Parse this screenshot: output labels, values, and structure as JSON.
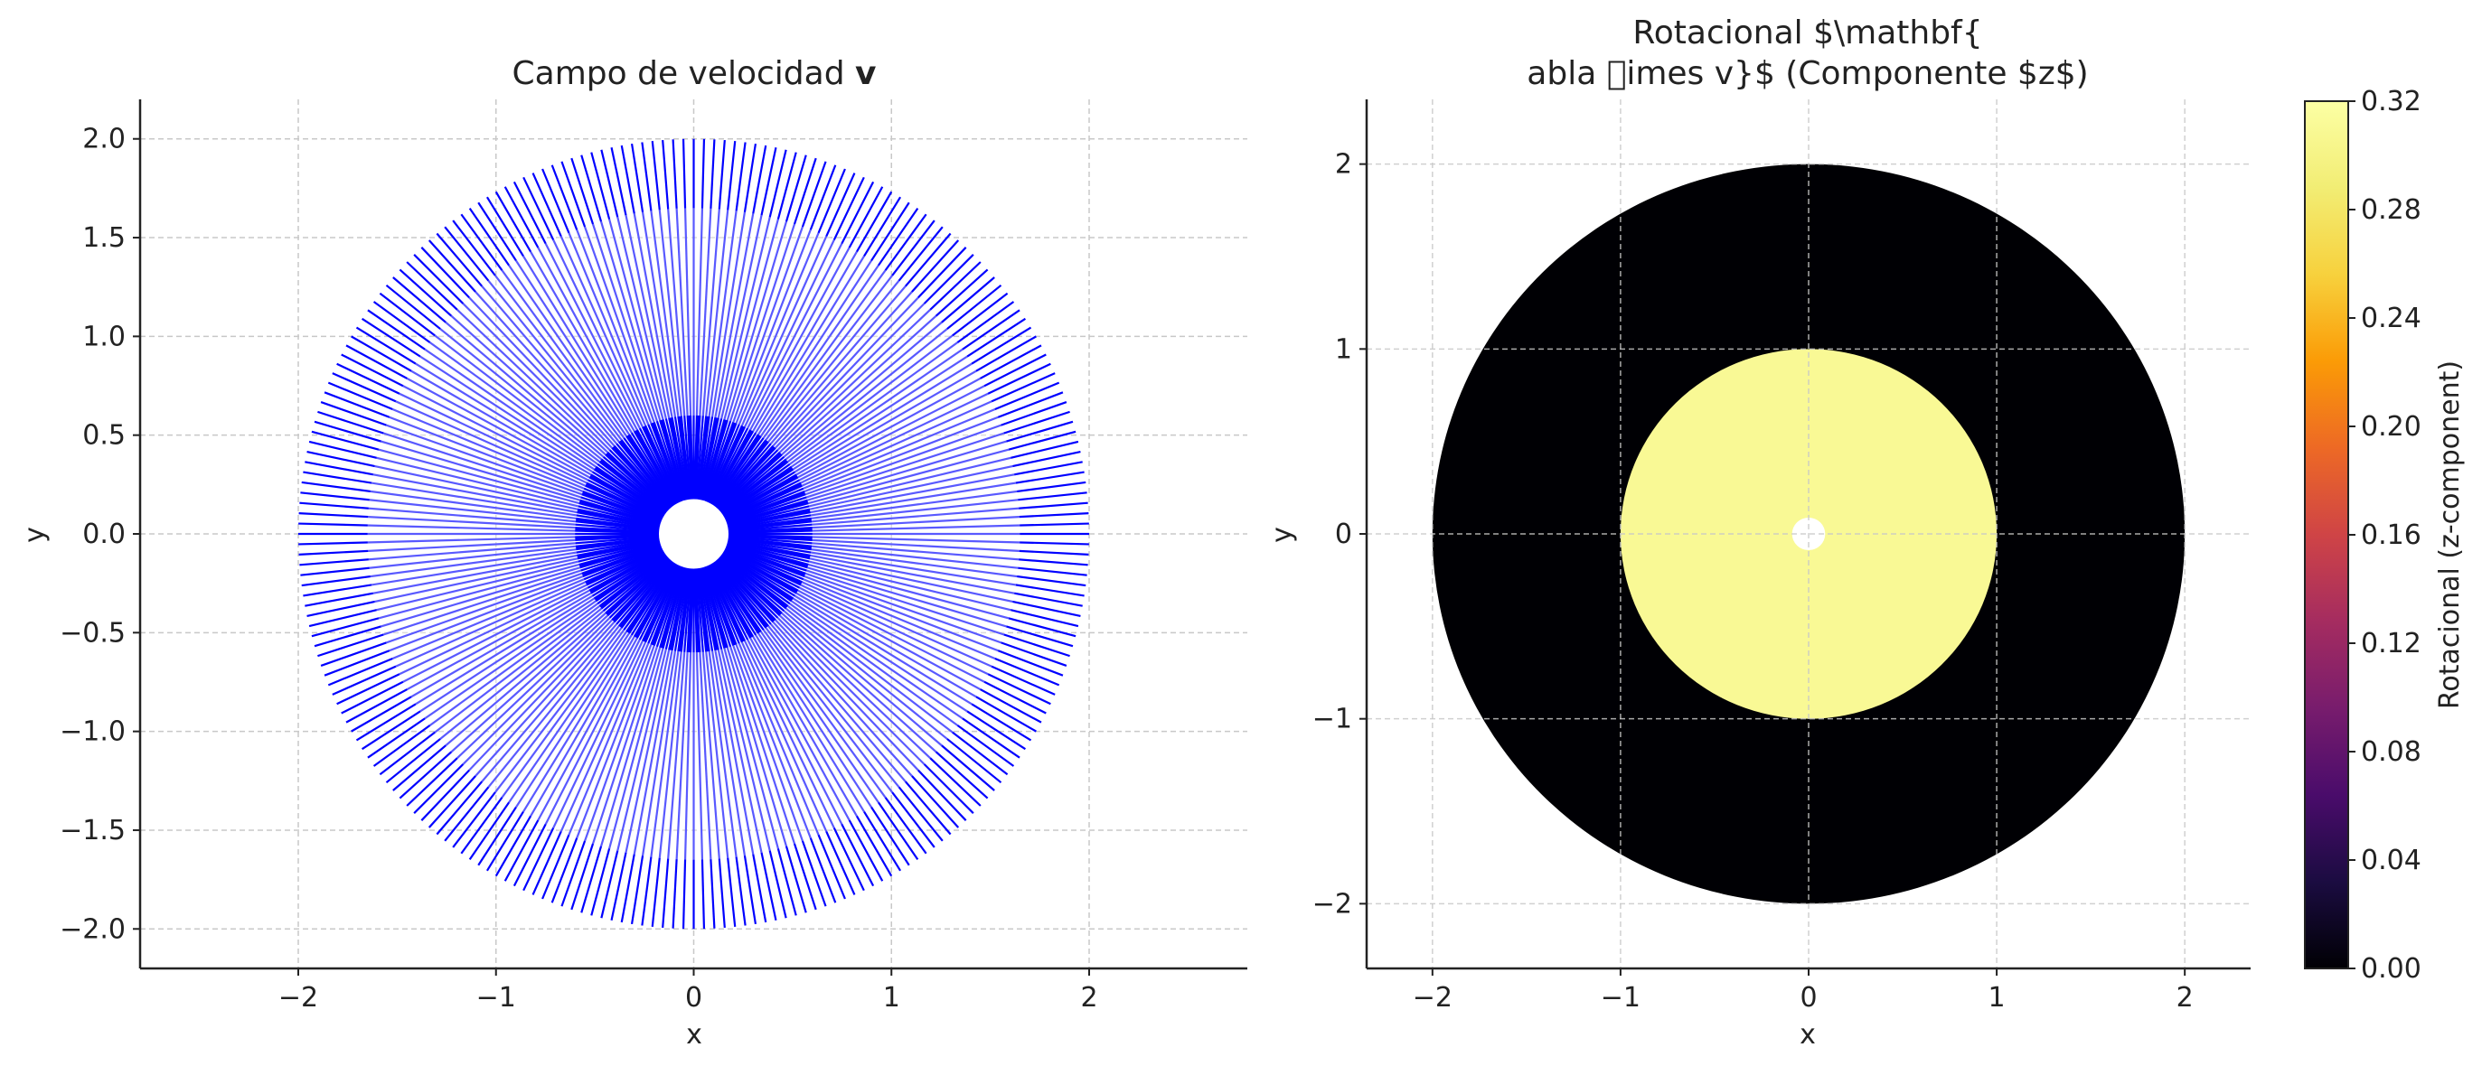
{
  "chart_data": [
    {
      "type": "quiver",
      "title_prefix": "Campo de velocidad ",
      "title_bold": "v",
      "xlabel": "x",
      "ylabel": "y",
      "xlim": [
        -2.8,
        2.8
      ],
      "ylim": [
        -2.2,
        2.2
      ],
      "xticks": [
        -2,
        -1,
        0,
        1,
        2
      ],
      "yticks": [
        -2.0,
        -1.5,
        -1.0,
        -0.5,
        0.0,
        0.5,
        1.0,
        1.5,
        2.0
      ],
      "grid": true,
      "series": [
        {
          "field": "radial",
          "r_min": 0.08,
          "r_max": 2.0,
          "angles": 240,
          "color": "#0000ff"
        },
        {
          "field": "radial",
          "r_min": 0.08,
          "r_max": 0.6,
          "angles": 160,
          "color": "#0000ff"
        }
      ],
      "inner_hole_radius": 0.08,
      "light_band_radii": [
        0.6,
        1.65
      ],
      "colors": {
        "arrows": "#0000ff",
        "light_band": "#c8c8ff"
      }
    },
    {
      "type": "heatmap",
      "title_line1": "Rotacional $\\mathbf{",
      "title_line2": "abla \u0000imes v}$ (Componente $z$)",
      "xlabel": "x",
      "ylabel": "y",
      "xlim": [
        -2.35,
        2.35
      ],
      "ylim": [
        -2.35,
        2.35
      ],
      "xticks": [
        -2,
        -1,
        0,
        1,
        2
      ],
      "yticks": [
        -2,
        -1,
        0,
        1,
        2
      ],
      "grid": true,
      "regions": [
        {
          "r_min": 1.0,
          "r_max": 2.0,
          "value": 0.0
        },
        {
          "r_min": 0.08,
          "r_max": 1.0,
          "value": 0.31
        }
      ],
      "colorbar": {
        "label": "Rotacional (z-component)",
        "range": [
          0.0,
          0.32
        ],
        "ticks": [
          0.0,
          0.04,
          0.08,
          0.12,
          0.16,
          0.2,
          0.24,
          0.28,
          0.32
        ],
        "colormap": "inferno"
      }
    }
  ]
}
